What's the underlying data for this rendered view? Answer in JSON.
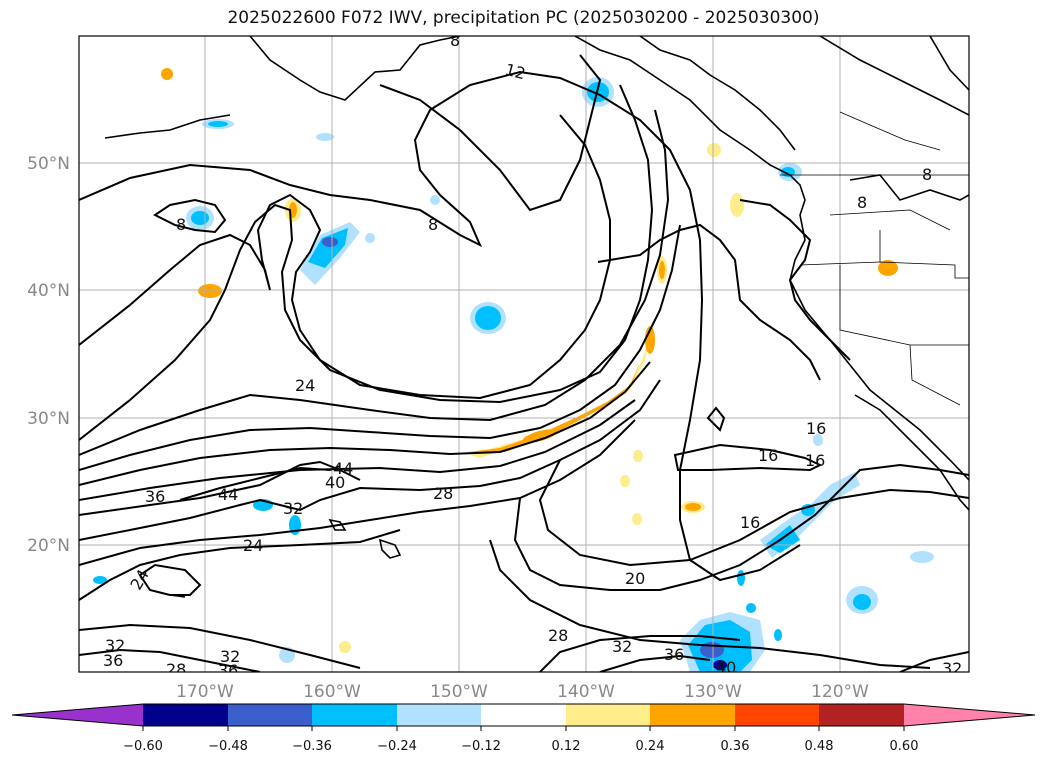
{
  "title": "2025022600 F072 IWV, precipitation PC (2025030200 - 2025030300)",
  "latitude_labels": [
    "50°N",
    "40°N",
    "30°N",
    "20°N"
  ],
  "longitude_labels": [
    "170°W",
    "160°W",
    "150°W",
    "140°W",
    "130°W",
    "120°W"
  ],
  "contour_labels": [
    "12",
    "8",
    "8",
    "8",
    "8",
    "24",
    "44",
    "40",
    "36",
    "44",
    "32",
    "28",
    "24",
    "24",
    "16",
    "16",
    "16",
    "16",
    "20",
    "28",
    "32",
    "36",
    "40",
    "32",
    "36",
    "32",
    "36",
    "28",
    "32",
    "8"
  ],
  "colorbar": {
    "colors": [
      "#9932cc",
      "#00008b",
      "#3a5fcd",
      "#00bfff",
      "#b0e2ff",
      "#ffffff",
      "#ffec8b",
      "#ffa500",
      "#ff4500",
      "#b22222",
      "#ff82ab"
    ],
    "ticks": [
      "−0.60",
      "−0.48",
      "−0.36",
      "−0.24",
      "−0.12",
      "0.12",
      "0.24",
      "0.36",
      "0.48",
      "0.60"
    ]
  }
}
